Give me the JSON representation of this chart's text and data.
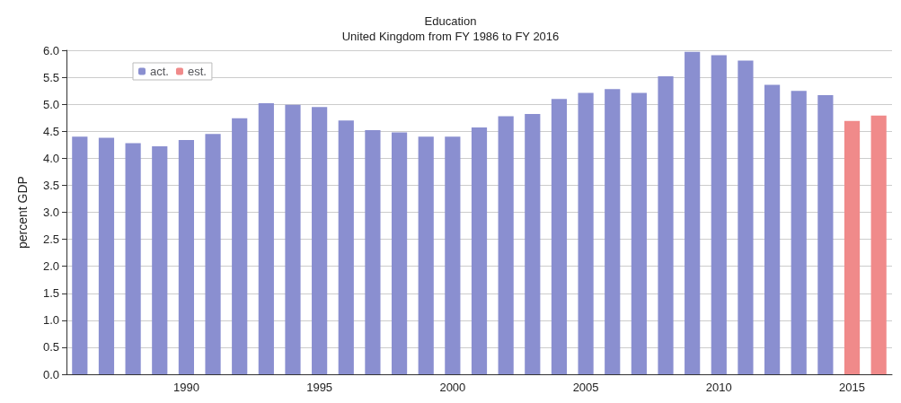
{
  "chart_data": {
    "type": "bar",
    "title": "Education",
    "subtitle": "United Kingdom from FY 1986 to FY 2016",
    "ylabel": "percent GDP",
    "categories": [
      null,
      null,
      null,
      null,
      "1990",
      null,
      null,
      null,
      null,
      "1995",
      null,
      null,
      null,
      null,
      "2000",
      null,
      null,
      null,
      null,
      "2005",
      null,
      null,
      null,
      null,
      "2010",
      null,
      null,
      null,
      null,
      "2015",
      null
    ],
    "series": [
      {
        "name": "act.",
        "color": "#8a8fd0",
        "values": [
          4.4,
          4.38,
          4.28,
          4.22,
          4.34,
          4.45,
          4.74,
          5.02,
          4.99,
          4.95,
          4.7,
          4.52,
          4.48,
          4.4,
          4.4,
          4.57,
          4.78,
          4.82,
          5.1,
          5.21,
          5.28,
          5.21,
          5.52,
          5.97,
          5.91,
          5.81,
          5.36,
          5.25,
          5.17,
          null,
          null
        ]
      },
      {
        "name": "est.",
        "color": "#f08a8a",
        "values": [
          null,
          null,
          null,
          null,
          null,
          null,
          null,
          null,
          null,
          null,
          null,
          null,
          null,
          null,
          null,
          null,
          null,
          null,
          null,
          null,
          null,
          null,
          null,
          null,
          null,
          null,
          null,
          null,
          null,
          4.69,
          4.79
        ]
      }
    ],
    "ylim": [
      0,
      6
    ],
    "yticks": [
      {
        "value": 0,
        "label": "0.0"
      },
      0.5,
      {
        "value": 1,
        "label": "1.0"
      },
      1.5,
      {
        "value": 2,
        "label": "2.0"
      },
      2.5,
      {
        "value": 3,
        "label": "3.0"
      },
      3.5,
      {
        "value": 4,
        "label": "4.0"
      },
      4.5,
      {
        "value": 5,
        "label": "5.0"
      },
      5.5,
      {
        "value": 6,
        "label": "6.0"
      }
    ],
    "grid": "y",
    "legend": "top left"
  }
}
